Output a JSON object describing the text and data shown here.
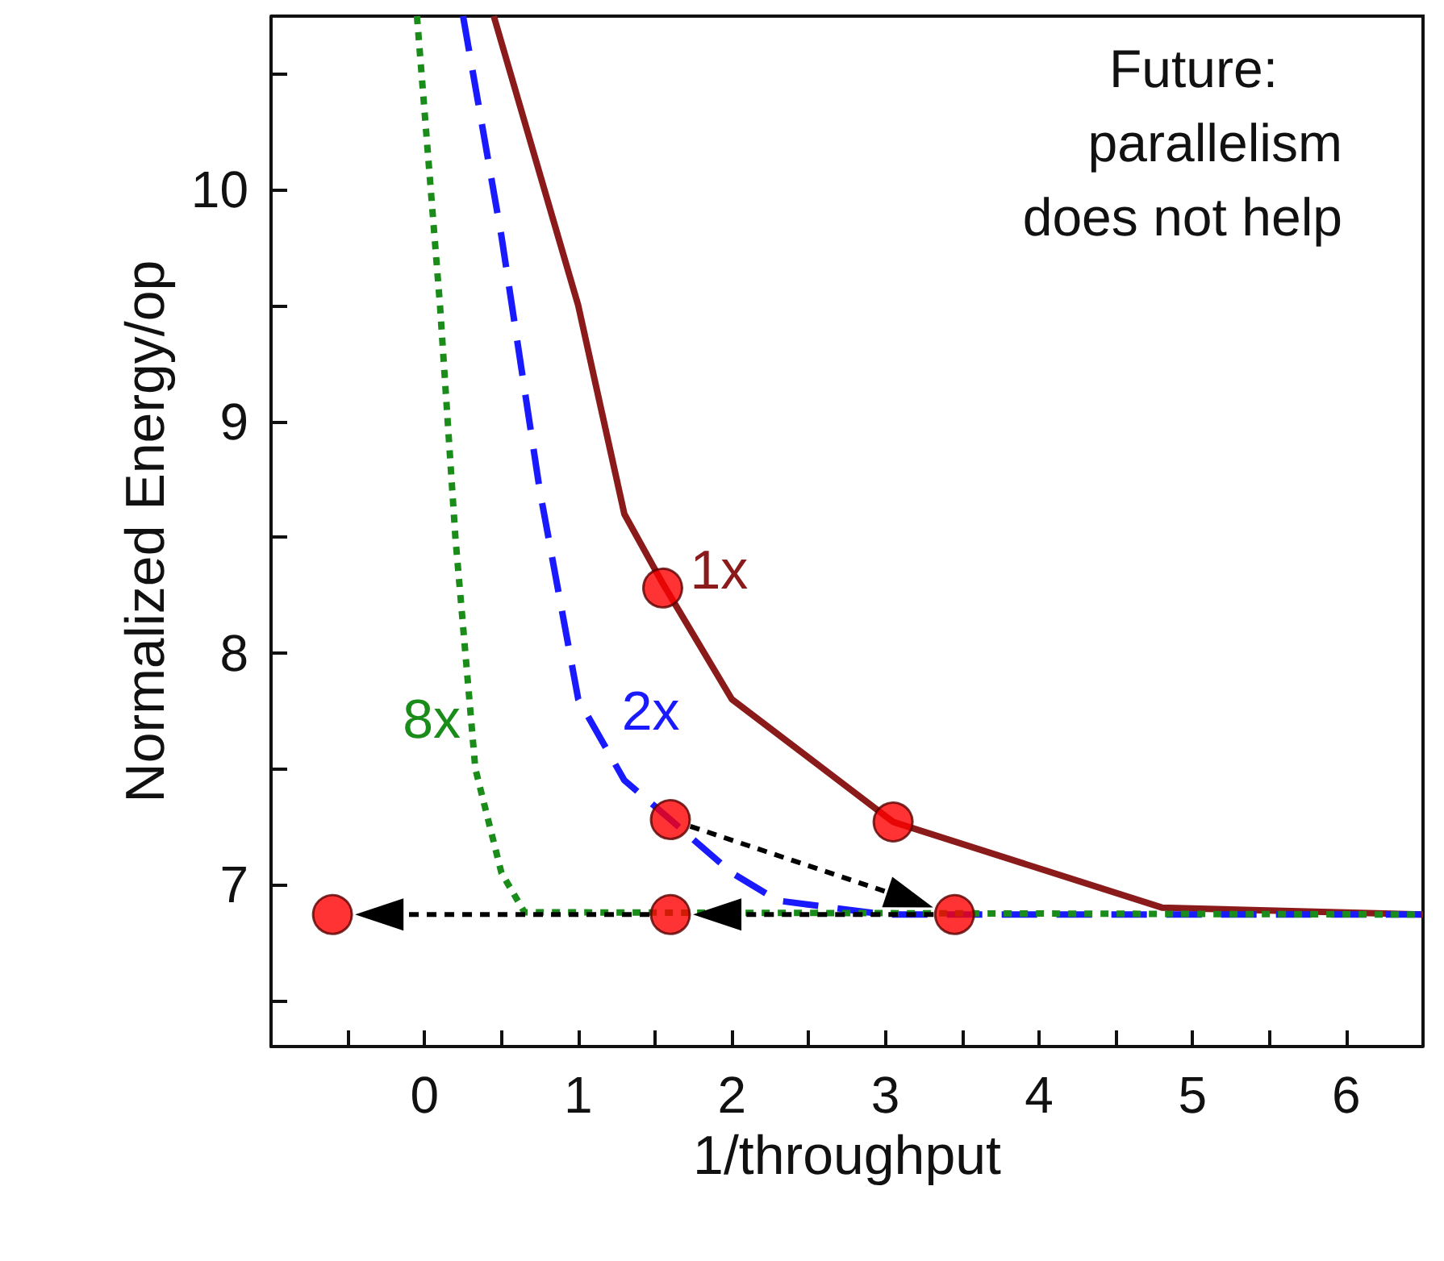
{
  "chart_data": {
    "type": "line",
    "xlabel": "1/throughput",
    "ylabel": "Normalized Energy/op",
    "xlim": [
      -1,
      6.5
    ],
    "xticks": [
      {
        "value": -0.5,
        "label": null
      },
      0,
      {
        "value": 0.5,
        "label": null
      },
      1,
      {
        "value": 1.5,
        "label": null
      },
      2,
      {
        "value": 2.5,
        "label": null
      },
      3,
      {
        "value": 3.5,
        "label": null
      },
      4,
      {
        "value": 4.5,
        "label": null
      },
      5,
      {
        "value": 5.5,
        "label": null
      },
      6
    ],
    "ylim": [
      6.3,
      10.75
    ],
    "yticks": [
      {
        "value": 6.5,
        "label": null
      },
      7,
      {
        "value": 7.5,
        "label": null
      },
      8,
      {
        "value": 8.5,
        "label": null
      },
      9,
      {
        "value": 9.5,
        "label": null
      },
      10,
      {
        "value": 10.5,
        "label": null
      }
    ],
    "grid": false,
    "legend": false,
    "annotations": [
      "Future:",
      "parallelism",
      "does not help"
    ],
    "series": [
      {
        "name": "1x",
        "color": "#8b1a1a",
        "line_style": "solid",
        "x": [
          0.45,
          1,
          1.3,
          1.55,
          2,
          3.05,
          4.8,
          6.5
        ],
        "values": [
          10.75,
          9.5,
          8.6,
          8.3,
          7.8,
          7.27,
          6.9,
          6.87
        ]
      },
      {
        "name": "2x",
        "color": "#1a1aff",
        "line_style": "dashed",
        "x": [
          0.25,
          0.5,
          0.75,
          1,
          1.3,
          1.6,
          2,
          2.3,
          3,
          6.5
        ],
        "values": [
          10.75,
          9.8,
          8.7,
          7.8,
          7.45,
          7.28,
          7.05,
          6.93,
          6.87,
          6.87
        ]
      },
      {
        "name": "8x",
        "color": "#1a8c1a",
        "line_style": "dotted",
        "x": [
          -0.05,
          0.1,
          0.2,
          0.33,
          0.5,
          0.65,
          6.5
        ],
        "values": [
          10.75,
          9.5,
          8.5,
          7.5,
          7.05,
          6.88,
          6.87
        ]
      },
      {
        "type": "scatter",
        "color": "#ff0000",
        "marker": "circle",
        "x": [
          -0.6,
          1.6,
          3.45,
          1.6,
          1.55,
          3.05
        ],
        "values": [
          6.87,
          6.87,
          6.87,
          7.28,
          8.28,
          7.27
        ]
      }
    ]
  }
}
